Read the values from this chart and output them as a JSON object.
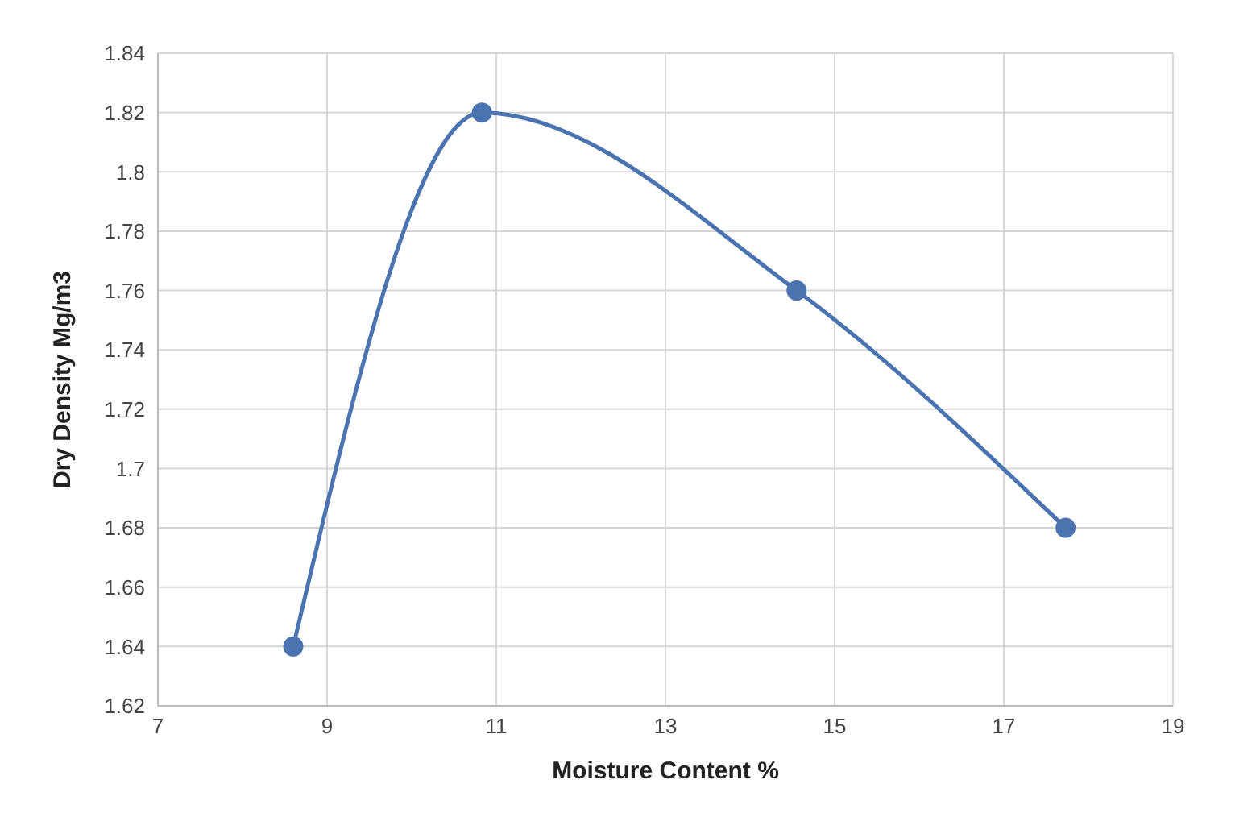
{
  "chart_data": {
    "type": "line",
    "xlabel": "Moisture Content %",
    "ylabel": "Dry Density  Mg/m3",
    "x": [
      8.6,
      10.83,
      14.55,
      17.73
    ],
    "series": [
      {
        "color": "#4a73b0",
        "values": [
          1.64,
          1.82,
          1.76,
          1.68
        ]
      }
    ],
    "xlim": [
      7,
      19
    ],
    "xticks": [
      7,
      9,
      11,
      13,
      15,
      17,
      19
    ],
    "ylim": [
      1.62,
      1.84
    ],
    "yticks": [
      1.62,
      1.64,
      1.66,
      1.68,
      1.7,
      1.72,
      1.74,
      1.76,
      1.78,
      1.8,
      1.82,
      1.84
    ],
    "grid": true,
    "marker": "circle",
    "line_style": "solid",
    "legend": false
  }
}
